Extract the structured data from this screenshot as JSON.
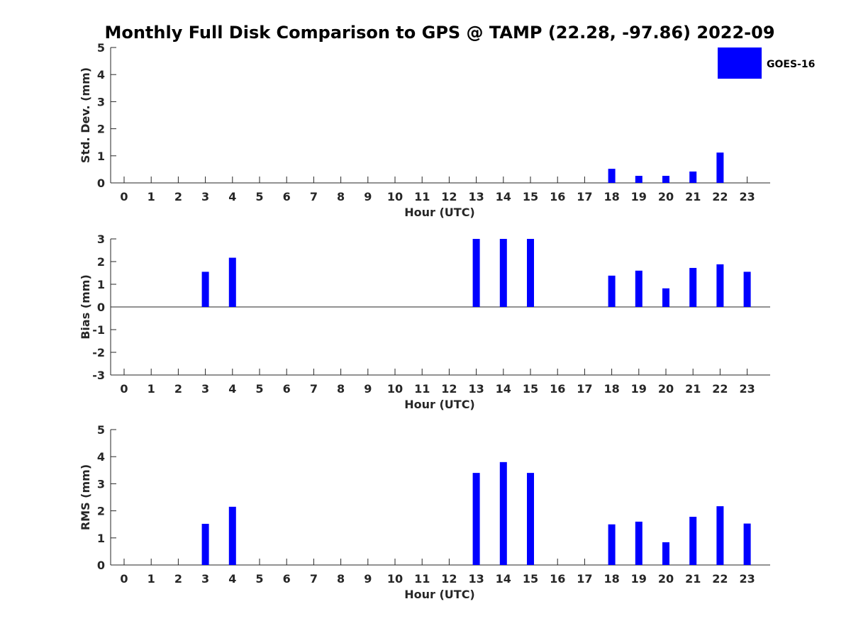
{
  "title": "Monthly Full Disk Comparison to GPS @ TAMP (22.28, -97.86) 2022-09",
  "colors": {
    "series": "#0000ff",
    "axis": "#262626",
    "text": "#000000"
  },
  "legend": {
    "label": "GOES-16",
    "position": "top-right"
  },
  "chart_data": [
    {
      "type": "bar",
      "panel": "std-dev",
      "xlabel": "Hour (UTC)",
      "ylabel": "Std. Dev. (mm)",
      "ylim": [
        0,
        5
      ],
      "yticks": [
        "0",
        "1",
        "2",
        "3",
        "4",
        "5"
      ],
      "categories": [
        "0",
        "1",
        "2",
        "3",
        "4",
        "5",
        "6",
        "7",
        "8",
        "9",
        "10",
        "11",
        "12",
        "13",
        "14",
        "15",
        "16",
        "17",
        "18",
        "19",
        "20",
        "21",
        "22",
        "23"
      ],
      "series": [
        {
          "name": "GOES-16",
          "values": [
            null,
            null,
            null,
            null,
            null,
            null,
            null,
            null,
            null,
            null,
            null,
            null,
            null,
            null,
            null,
            null,
            null,
            null,
            0.52,
            0.26,
            0.26,
            0.42,
            1.12,
            null
          ]
        }
      ]
    },
    {
      "type": "bar",
      "panel": "bias",
      "xlabel": "Hour (UTC)",
      "ylabel": "Bias (mm)",
      "ylim": [
        -3,
        3
      ],
      "yticks": [
        "-3",
        "-2",
        "-1",
        "0",
        "1",
        "2",
        "3"
      ],
      "zero_line": true,
      "categories": [
        "0",
        "1",
        "2",
        "3",
        "4",
        "5",
        "6",
        "7",
        "8",
        "9",
        "10",
        "11",
        "12",
        "13",
        "14",
        "15",
        "16",
        "17",
        "18",
        "19",
        "20",
        "21",
        "22",
        "23"
      ],
      "series": [
        {
          "name": "GOES-16",
          "values": [
            null,
            null,
            null,
            1.55,
            2.17,
            null,
            null,
            null,
            null,
            null,
            null,
            null,
            null,
            3.0,
            3.0,
            3.0,
            null,
            null,
            1.38,
            1.6,
            0.82,
            1.72,
            1.88,
            1.55
          ]
        }
      ]
    },
    {
      "type": "bar",
      "panel": "rms",
      "xlabel": "Hour (UTC)",
      "ylabel": "RMS (mm)",
      "ylim": [
        0,
        5
      ],
      "yticks": [
        "0",
        "1",
        "2",
        "3",
        "4",
        "5"
      ],
      "categories": [
        "0",
        "1",
        "2",
        "3",
        "4",
        "5",
        "6",
        "7",
        "8",
        "9",
        "10",
        "11",
        "12",
        "13",
        "14",
        "15",
        "16",
        "17",
        "18",
        "19",
        "20",
        "21",
        "22",
        "23"
      ],
      "series": [
        {
          "name": "GOES-16",
          "values": [
            null,
            null,
            null,
            1.52,
            2.15,
            null,
            null,
            null,
            null,
            null,
            null,
            null,
            null,
            3.4,
            3.8,
            3.4,
            null,
            null,
            1.5,
            1.6,
            0.84,
            1.78,
            2.17,
            1.53
          ]
        }
      ]
    }
  ]
}
